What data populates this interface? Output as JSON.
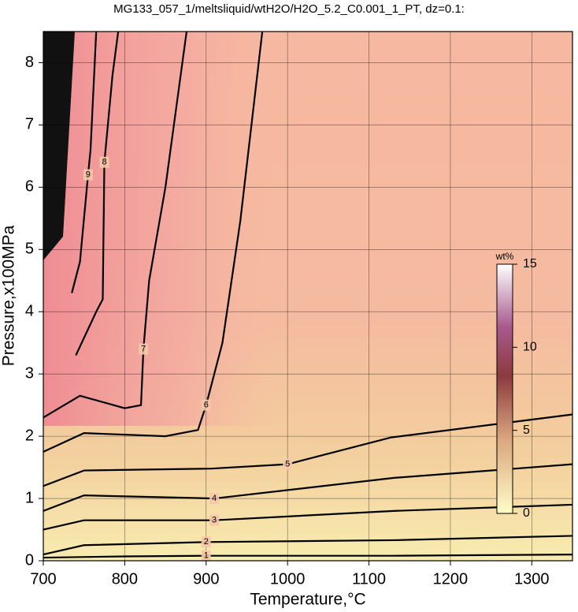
{
  "chart_data": {
    "type": "contour",
    "title": "MG133_057_1/meltsliquid/wtH2O/H2O_5.2_C0.001_1_PT, dz=0.1:",
    "x_label": "Temperature,°C",
    "y_label": "Pressure,x100MPa",
    "xlim": [
      700,
      1350
    ],
    "ylim": [
      0,
      8.5
    ],
    "xticks": [
      700,
      800,
      900,
      1000,
      1100,
      1200,
      1300
    ],
    "yticks": [
      0,
      1,
      2,
      3,
      4,
      5,
      6,
      7,
      8
    ],
    "grid": true,
    "contours": [
      {
        "level": 1,
        "x": [
          700,
          800,
          900,
          1130,
          1350
        ],
        "y": [
          0.05,
          0.07,
          0.08,
          0.08,
          0.1
        ]
      },
      {
        "level": 2,
        "x": [
          700,
          750,
          900,
          1130,
          1350
        ],
        "y": [
          0.1,
          0.25,
          0.3,
          0.33,
          0.4
        ]
      },
      {
        "level": 3,
        "x": [
          700,
          750,
          910,
          1130,
          1350
        ],
        "y": [
          0.5,
          0.65,
          0.65,
          0.8,
          0.9
        ]
      },
      {
        "level": 4,
        "x": [
          700,
          750,
          910,
          1130,
          1350
        ],
        "y": [
          0.8,
          1.05,
          1.0,
          1.33,
          1.55
        ]
      },
      {
        "level": 5,
        "x": [
          700,
          750,
          906,
          1000,
          1127,
          1350
        ],
        "y": [
          1.2,
          1.45,
          1.48,
          1.55,
          1.98,
          2.35
        ]
      },
      {
        "level": 6,
        "x": [
          700,
          750,
          850,
          890,
          900,
          920,
          942,
          969
        ],
        "y": [
          1.75,
          2.05,
          2.0,
          2.1,
          2.5,
          3.5,
          5.46,
          8.5
        ]
      },
      {
        "level": 7,
        "x": [
          700,
          745,
          800,
          820,
          823,
          830,
          850,
          876
        ],
        "y": [
          2.3,
          2.65,
          2.45,
          2.5,
          3.4,
          4.5,
          6.0,
          8.5
        ]
      },
      {
        "level": 8,
        "x": [
          740,
          765,
          773,
          775,
          785,
          792
        ],
        "y": [
          3.3,
          4.0,
          4.2,
          6.4,
          7.8,
          8.5
        ]
      },
      {
        "level": 9,
        "x": [
          735,
          745,
          755,
          758,
          765
        ],
        "y": [
          4.3,
          4.8,
          6.2,
          6.6,
          8.5
        ]
      }
    ],
    "colorbar": {
      "label": "wt%",
      "lim": [
        0,
        15
      ],
      "ticks": [
        0,
        5,
        10,
        15
      ]
    }
  }
}
